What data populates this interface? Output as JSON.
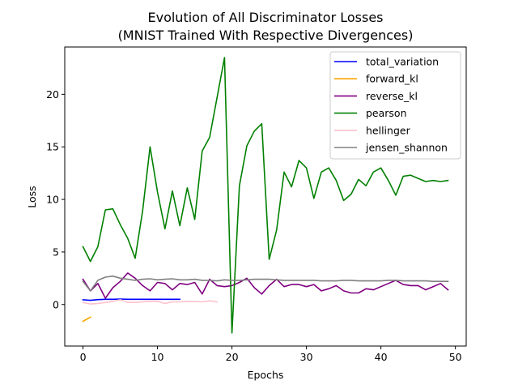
{
  "chart_data": {
    "type": "line",
    "title_line1": "Evolution of All Discriminator Losses",
    "title_line2": "(MNIST Trained With Respective Divergences)",
    "xlabel": "Epochs",
    "ylabel": "Loss",
    "xlim": [
      -2.45,
      51.45
    ],
    "ylim": [
      -3.95,
      24.5
    ],
    "xticks": [
      0,
      10,
      20,
      30,
      40,
      50
    ],
    "yticks": [
      0,
      5,
      10,
      15,
      20
    ],
    "grid": false,
    "legend_position": "top-right",
    "series": [
      {
        "name": "total_variation",
        "color": "#0000ff",
        "x": [
          0,
          1,
          2,
          3,
          4,
          5,
          6,
          7,
          8,
          9,
          10,
          11,
          12,
          13
        ],
        "values": [
          0.45,
          0.4,
          0.47,
          0.5,
          0.5,
          0.52,
          0.5,
          0.5,
          0.5,
          0.5,
          0.5,
          0.5,
          0.5,
          0.5
        ]
      },
      {
        "name": "forward_kl",
        "color": "#ffa500",
        "x": [
          0,
          1
        ],
        "values": [
          -1.6,
          -1.2
        ]
      },
      {
        "name": "reverse_kl",
        "color": "#800080",
        "x": [
          0,
          1,
          2,
          3,
          4,
          5,
          6,
          7,
          8,
          9,
          10,
          11,
          12,
          13,
          14,
          15,
          16,
          17,
          18,
          19,
          20,
          21,
          22,
          23,
          24,
          25,
          26,
          27,
          28,
          29,
          30,
          31,
          32,
          33,
          34,
          35,
          36,
          37,
          38,
          39,
          40,
          41,
          42,
          43,
          44,
          45,
          46,
          47,
          48,
          49
        ],
        "values": [
          2.4,
          1.3,
          2.0,
          0.6,
          1.6,
          2.2,
          3.0,
          2.5,
          1.8,
          1.3,
          2.1,
          2.0,
          1.4,
          2.0,
          1.9,
          2.1,
          1.0,
          2.4,
          1.8,
          1.7,
          1.8,
          2.1,
          2.5,
          1.6,
          1.0,
          1.8,
          2.4,
          1.7,
          1.9,
          1.9,
          1.7,
          1.9,
          1.3,
          1.5,
          1.8,
          1.3,
          1.1,
          1.1,
          1.5,
          1.4,
          1.7,
          2.0,
          2.3,
          1.9,
          1.8,
          1.8,
          1.4,
          1.7,
          2.0,
          1.4
        ]
      },
      {
        "name": "pearson",
        "color": "#008000",
        "x": [
          0,
          1,
          2,
          3,
          4,
          5,
          6,
          7,
          8,
          9,
          10,
          11,
          12,
          13,
          14,
          15,
          16,
          17,
          18,
          19,
          20,
          21,
          22,
          23,
          24,
          25,
          26,
          27,
          28,
          29,
          30,
          31,
          32,
          33,
          34,
          35,
          36,
          37,
          38,
          39,
          40,
          41,
          42,
          43,
          44,
          45,
          46,
          47,
          48,
          49
        ],
        "values": [
          5.5,
          4.1,
          5.5,
          9.0,
          9.1,
          7.6,
          6.3,
          4.4,
          8.9,
          15.0,
          10.7,
          7.2,
          10.8,
          7.5,
          11.1,
          8.1,
          14.6,
          15.9,
          19.7,
          23.5,
          -2.7,
          11.3,
          15.1,
          16.5,
          17.2,
          4.3,
          7.1,
          12.6,
          11.2,
          13.7,
          13.0,
          10.1,
          12.6,
          13.0,
          11.8,
          9.9,
          10.5,
          11.9,
          11.3,
          12.6,
          13.0,
          11.8,
          10.4,
          12.2,
          12.3,
          12.0,
          11.7,
          11.8,
          11.7,
          11.8
        ]
      },
      {
        "name": "hellinger",
        "color": "#ffc0cb",
        "x": [
          0,
          1,
          2,
          3,
          4,
          5,
          6,
          7,
          8,
          9,
          10,
          11,
          12,
          13,
          14,
          15,
          16,
          17,
          18
        ],
        "values": [
          0.2,
          0.05,
          0.1,
          0.2,
          0.3,
          0.45,
          0.2,
          0.2,
          0.25,
          0.3,
          0.3,
          0.1,
          0.25,
          0.25,
          0.3,
          0.3,
          0.25,
          0.35,
          0.25
        ]
      },
      {
        "name": "jensen_shannon",
        "color": "#808080",
        "x": [
          0,
          1,
          2,
          3,
          4,
          5,
          6,
          7,
          8,
          9,
          10,
          11,
          12,
          13,
          14,
          15,
          16,
          17,
          18,
          19,
          20,
          21,
          22,
          23,
          24,
          25,
          26,
          27,
          28,
          29,
          30,
          31,
          32,
          33,
          34,
          35,
          36,
          37,
          38,
          39,
          40,
          41,
          42,
          43,
          44,
          45,
          46,
          47,
          48,
          49
        ],
        "values": [
          2.2,
          1.3,
          2.3,
          2.6,
          2.7,
          2.5,
          2.4,
          2.3,
          2.4,
          2.45,
          2.35,
          2.4,
          2.45,
          2.35,
          2.35,
          2.4,
          2.3,
          2.3,
          2.25,
          2.35,
          2.3,
          2.3,
          2.35,
          2.4,
          2.4,
          2.4,
          2.35,
          2.3,
          2.3,
          2.3,
          2.3,
          2.3,
          2.25,
          2.25,
          2.25,
          2.3,
          2.3,
          2.25,
          2.25,
          2.25,
          2.25,
          2.3,
          2.3,
          2.25,
          2.25,
          2.25,
          2.25,
          2.2,
          2.2,
          2.2
        ]
      }
    ]
  }
}
